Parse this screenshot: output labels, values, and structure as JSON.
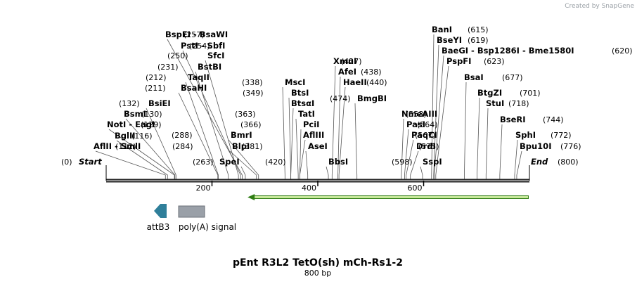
{
  "credit": {
    "prefix": "Created by",
    "brand": "SnapGene"
  },
  "map": {
    "title": "pEnt R3L2 TetO(sh) mCh-Rs1-2",
    "subtitle": "800 bp",
    "length": 800,
    "start_label": "Start",
    "end_label": "End",
    "start_pos": "(0)",
    "end_pos": "(800)",
    "ticks": [
      200,
      400,
      600
    ],
    "colors": {
      "backbone": "#222222",
      "arrow_fill": "#c7e89a",
      "arrow_edge": "#2f7d14",
      "attB3": "#2f7f9a",
      "polyA": "#9aa0a8"
    }
  },
  "sites": [
    {
      "parts": [
        "AflII",
        "SmlI"
      ],
      "pos": "(112)",
      "bp": 112
    },
    {
      "parts": [
        "BglII"
      ],
      "pos": "(116)",
      "bp": 116
    },
    {
      "parts": [
        "NotI",
        "EagI"
      ],
      "pos": "(129)",
      "bp": 129
    },
    {
      "parts": [
        "BsmI"
      ],
      "pos": "(130)",
      "bp": 130
    },
    {
      "parts": [
        "BsiEI"
      ],
      "pos": "(132)",
      "bp": 132
    },
    {
      "parts": [
        "BsaHI"
      ],
      "pos": "(211)",
      "bp": 211
    },
    {
      "parts": [
        "TaqII"
      ],
      "pos": "(212)",
      "bp": 212
    },
    {
      "parts": [
        "BstBI"
      ],
      "pos": "(231)",
      "bp": 231
    },
    {
      "parts": [
        "SfcI"
      ],
      "pos": "(250)",
      "bp": 250
    },
    {
      "parts": [
        "PstI",
        "SbfI"
      ],
      "pos": "(254)",
      "bp": 254
    },
    {
      "parts": [
        "BspEI",
        "BsaWI"
      ],
      "pos": "(257)",
      "bp": 257
    },
    {
      "parts": [
        "SpeI"
      ],
      "pos": "(263)",
      "bp": 263
    },
    {
      "parts": [
        "BlpI"
      ],
      "pos": "(284)",
      "bp": 284
    },
    {
      "parts": [
        "BmrI"
      ],
      "pos": "(288)",
      "bp": 288
    },
    {
      "parts": [
        "MscI"
      ],
      "pos": "(338)",
      "bp": 338
    },
    {
      "parts": [
        "BtsI"
      ],
      "pos": "(349)",
      "bp": 349
    },
    {
      "parts": [
        "BtsαI"
      ],
      "pos": "",
      "bp": 349
    },
    {
      "parts": [
        "TatI"
      ],
      "pos": "(363)",
      "bp": 363
    },
    {
      "parts": [
        "PciI"
      ],
      "pos": "(366)",
      "bp": 366
    },
    {
      "parts": [
        "AflIII"
      ],
      "pos": "",
      "bp": 366
    },
    {
      "parts": [
        "AseI"
      ],
      "pos": "(381)",
      "bp": 381
    },
    {
      "parts": [
        "BbsI"
      ],
      "pos": "(420)",
      "bp": 420
    },
    {
      "parts": [
        "XmnI"
      ],
      "pos": "(427)",
      "bp": 427
    },
    {
      "parts": [
        "AfeI"
      ],
      "pos": "(438)",
      "bp": 438
    },
    {
      "parts": [
        "HaeII"
      ],
      "pos": "(440)",
      "bp": 440
    },
    {
      "parts": [
        "BmgBI"
      ],
      "pos": "(474)",
      "bp": 474
    },
    {
      "parts": [
        "NmeAIII"
      ],
      "pos": "(558)",
      "bp": 558
    },
    {
      "parts": [
        "PasI"
      ],
      "pos": "(564)",
      "bp": 564
    },
    {
      "parts": [
        "PaqCI"
      ],
      "pos": "(567)",
      "bp": 567
    },
    {
      "parts": [
        "DrdI"
      ],
      "pos": "(575)",
      "bp": 575
    },
    {
      "parts": [
        "SspI"
      ],
      "pos": "(598)",
      "bp": 598
    },
    {
      "parts": [
        "BanI"
      ],
      "pos": "(615)",
      "bp": 615
    },
    {
      "parts": [
        "BseYI"
      ],
      "pos": "(619)",
      "bp": 619
    },
    {
      "parts": [
        "BaeGI",
        "Bsp1286I",
        "Bme1580I"
      ],
      "pos": "(620)",
      "bp": 620
    },
    {
      "parts": [
        "PspFI"
      ],
      "pos": "(623)",
      "bp": 623
    },
    {
      "parts": [
        "BsaI"
      ],
      "pos": "(677)",
      "bp": 677
    },
    {
      "parts": [
        "BtgZI"
      ],
      "pos": "(701)",
      "bp": 701
    },
    {
      "parts": [
        "StuI"
      ],
      "pos": "(718)",
      "bp": 718
    },
    {
      "parts": [
        "BseRI"
      ],
      "pos": "(744)",
      "bp": 744
    },
    {
      "parts": [
        "SphI"
      ],
      "pos": "(772)",
      "bp": 772
    },
    {
      "parts": [
        "Bpu10I"
      ],
      "pos": "(776)",
      "bp": 776
    }
  ],
  "features": [
    {
      "name": "attB3",
      "type": "arrow-left",
      "start": 84,
      "end": 108
    },
    {
      "name": "poly(A) signal",
      "type": "box",
      "start": 138,
      "end": 188
    },
    {
      "name": "",
      "type": "orf-left",
      "start": 270,
      "end": 798
    }
  ]
}
